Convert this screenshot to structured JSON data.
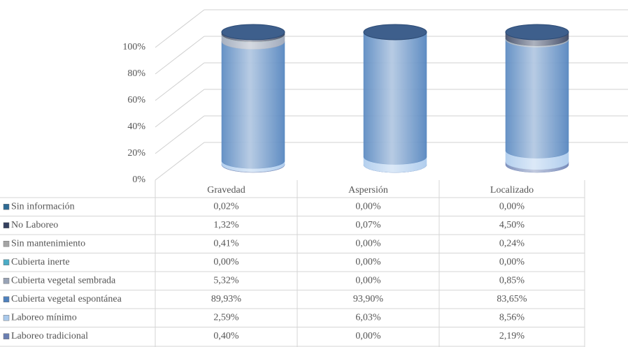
{
  "chart_data": {
    "type": "bar",
    "stacked": true,
    "categories": [
      "Gravedad",
      "Aspersión",
      "Localizado"
    ],
    "ylim": [
      0,
      100
    ],
    "yticks": [
      {
        "value": 0,
        "label": "0%"
      },
      {
        "value": 20,
        "label": "20%"
      },
      {
        "value": 40,
        "label": "40%"
      },
      {
        "value": 60,
        "label": "60%"
      },
      {
        "value": 80,
        "label": "80%"
      },
      {
        "value": 100,
        "label": "100%"
      }
    ],
    "grid": true,
    "series": [
      {
        "name": "Sin información",
        "color": "#2e6a94",
        "values": [
          0.02,
          0,
          0
        ],
        "value_labels": [
          "0,02%",
          "0,00%",
          "0,00%"
        ]
      },
      {
        "name": "No Laboreo",
        "color": "#34405e",
        "values": [
          1.32,
          0.07,
          4.5
        ],
        "value_labels": [
          "1,32%",
          "0,07%",
          "4,50%"
        ]
      },
      {
        "name": "Sin mantenimiento",
        "color": "#a5a5a5",
        "values": [
          0.41,
          0,
          0.24
        ],
        "value_labels": [
          "0,41%",
          "0,00%",
          "0,24%"
        ]
      },
      {
        "name": "Cubierta inerte",
        "color": "#4bacc6",
        "values": [
          0,
          0,
          0
        ],
        "value_labels": [
          "0,00%",
          "0,00%",
          "0,00%"
        ]
      },
      {
        "name": "Cubierta vegetal sembrada",
        "color": "#98a3b6",
        "values": [
          5.32,
          0,
          0.85
        ],
        "value_labels": [
          "5,32%",
          "0,00%",
          "0,85%"
        ]
      },
      {
        "name": "Cubierta vegetal espontánea",
        "color": "#4f81bd",
        "values": [
          89.93,
          93.9,
          83.65
        ],
        "value_labels": [
          "89,93%",
          "93,90%",
          "83,65%"
        ]
      },
      {
        "name": "Laboreo mínimo",
        "color": "#a9c9ec",
        "values": [
          2.59,
          6.03,
          8.56
        ],
        "value_labels": [
          "2,59%",
          "6,03%",
          "8,56%"
        ]
      },
      {
        "name": "Laboreo tradicional",
        "color": "#6a7fb2",
        "values": [
          0.4,
          0,
          2.19
        ],
        "value_labels": [
          "0,40%",
          "0,00%",
          "2,19%"
        ]
      }
    ]
  }
}
